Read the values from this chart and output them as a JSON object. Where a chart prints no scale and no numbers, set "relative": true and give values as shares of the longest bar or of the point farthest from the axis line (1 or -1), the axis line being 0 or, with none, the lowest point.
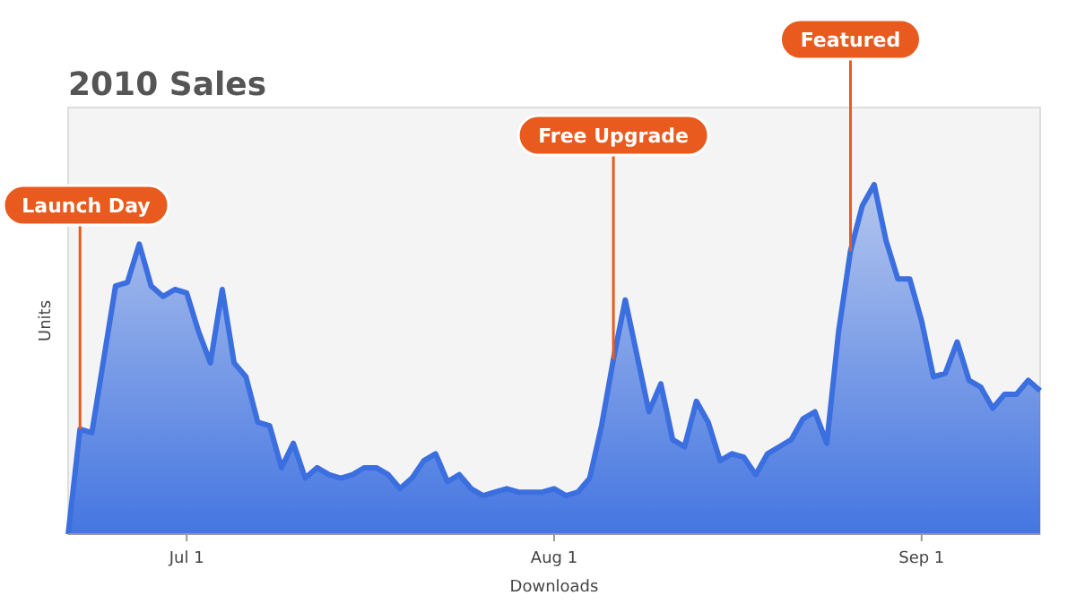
{
  "chart_data": {
    "type": "area",
    "title": "2010 Sales",
    "xlabel": "Downloads",
    "ylabel": "Units",
    "relative": true,
    "x": [
      "--06-21",
      "--06-22",
      "--06-23",
      "--06-24",
      "--06-25",
      "--06-26",
      "--06-27",
      "--06-28",
      "--06-29",
      "--06-30",
      "--07-01",
      "--07-02",
      "--07-03",
      "--07-04",
      "--07-05",
      "--07-06",
      "--07-07",
      "--07-08",
      "--07-09",
      "--07-10",
      "--07-11",
      "--07-12",
      "--07-13",
      "--07-14",
      "--07-15",
      "--07-16",
      "--07-17",
      "--07-18",
      "--07-19",
      "--07-20",
      "--07-21",
      "--07-22",
      "--07-23",
      "--07-24",
      "--07-25",
      "--07-26",
      "--07-27",
      "--07-28",
      "--07-29",
      "--07-30",
      "--07-31",
      "--08-01",
      "--08-02",
      "--08-03",
      "--08-04",
      "--08-05",
      "--08-06",
      "--08-07",
      "--08-08",
      "--08-09",
      "--08-10",
      "--08-11",
      "--08-12",
      "--08-13",
      "--08-14",
      "--08-15",
      "--08-16",
      "--08-17",
      "--08-18",
      "--08-19",
      "--08-20",
      "--08-21",
      "--08-22",
      "--08-23",
      "--08-24",
      "--08-25",
      "--08-26",
      "--08-27",
      "--08-28",
      "--08-29",
      "--08-30",
      "--08-31",
      "--09-01",
      "--09-02",
      "--09-03",
      "--09-04",
      "--09-05",
      "--09-06",
      "--09-07",
      "--09-08",
      "--09-09",
      "--09-10",
      "--09-11"
    ],
    "series": [
      {
        "color": "#3b6fe0",
        "values": [
          0,
          0.3,
          0.29,
          0.5,
          0.71,
          0.72,
          0.83,
          0.71,
          0.68,
          0.7,
          0.69,
          0.58,
          0.49,
          0.7,
          0.49,
          0.45,
          0.32,
          0.31,
          0.19,
          0.26,
          0.16,
          0.19,
          0.17,
          0.16,
          0.17,
          0.19,
          0.19,
          0.17,
          0.13,
          0.16,
          0.21,
          0.23,
          0.15,
          0.17,
          0.13,
          0.11,
          0.12,
          0.13,
          0.12,
          0.12,
          0.12,
          0.13,
          0.11,
          0.12,
          0.16,
          0.31,
          0.5,
          0.67,
          0.51,
          0.35,
          0.43,
          0.27,
          0.25,
          0.38,
          0.32,
          0.21,
          0.23,
          0.22,
          0.17,
          0.23,
          0.25,
          0.27,
          0.33,
          0.35,
          0.26,
          0.58,
          0.81,
          0.94,
          1,
          0.84,
          0.73,
          0.73,
          0.61,
          0.45,
          0.46,
          0.55,
          0.44,
          0.42,
          0.36,
          0.4,
          0.4,
          0.44,
          0.41
        ]
      }
    ],
    "xlim": [
      "--06-21",
      "--09-11"
    ],
    "xticks": [
      {
        "value": "--07-01",
        "label": "Jul 1"
      },
      {
        "value": "--08-01",
        "label": "Aug 1"
      },
      {
        "value": "--09-01",
        "label": "Sep 1"
      }
    ],
    "annotations": [
      {
        "text": "Launch Day",
        "x": "--06-22",
        "y": 0.3
      },
      {
        "text": "Free Upgrade",
        "x": "--08-06",
        "y": 0.5
      },
      {
        "text": "Featured",
        "x": "--08-26",
        "y": 0.81
      }
    ]
  }
}
